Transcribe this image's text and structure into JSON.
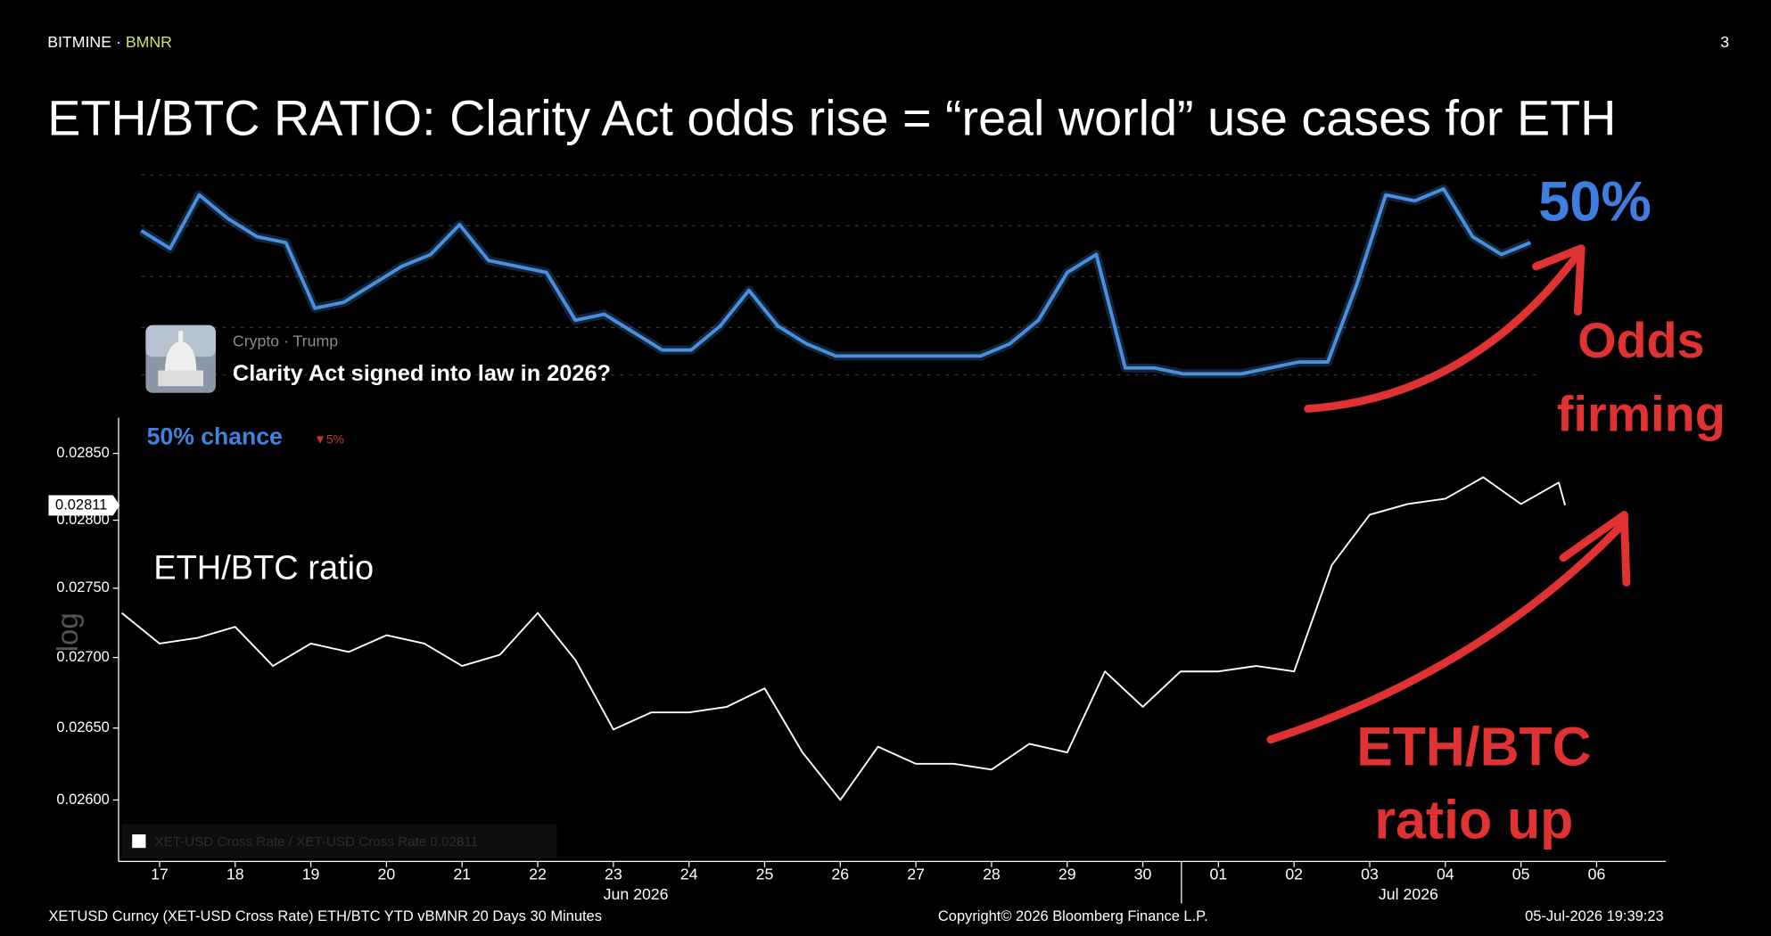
{
  "header": {
    "brand": "BITMINE ·",
    "ticker": "BMNR",
    "page": "3"
  },
  "title": "ETH/BTC RATIO: Clarity Act odds rise = “real world” use cases for ETH",
  "chart_data": [
    {
      "type": "line",
      "color": "#4a8fe0",
      "values": [
        52,
        49,
        58,
        54,
        51,
        50,
        39,
        40,
        43,
        46,
        48,
        53,
        47,
        46,
        45,
        37,
        38,
        35,
        32,
        32,
        36,
        42,
        36,
        33,
        31,
        31,
        31,
        31,
        31,
        31,
        33,
        37,
        45,
        48,
        29,
        29,
        28,
        28,
        28,
        29,
        30,
        30,
        43,
        58,
        57,
        59,
        51,
        48,
        50
      ],
      "ylim": [
        25,
        60
      ],
      "card": {
        "category": "Crypto · Trump",
        "question": "Clarity Act signed into law in 2026?",
        "chance": "50% chance",
        "change": "▼5%"
      },
      "annotation": "50%"
    },
    {
      "type": "line",
      "log_scale": true,
      "x": [
        "2026-06-16T12:00",
        "2026-06-17T00:00",
        "2026-06-17T12:00",
        "2026-06-18T00:00",
        "2026-06-18T12:00",
        "2026-06-19T00:00",
        "2026-06-19T12:00",
        "2026-06-20T00:00",
        "2026-06-20T12:00",
        "2026-06-21T00:00",
        "2026-06-21T12:00",
        "2026-06-22T00:00",
        "2026-06-22T12:00",
        "2026-06-23T00:00",
        "2026-06-23T12:00",
        "2026-06-24T00:00",
        "2026-06-24T12:00",
        "2026-06-25T00:00",
        "2026-06-25T12:00",
        "2026-06-26T00:00",
        "2026-06-26T12:00",
        "2026-06-27T00:00",
        "2026-06-27T12:00",
        "2026-06-28T00:00",
        "2026-06-28T12:00",
        "2026-06-29T00:00",
        "2026-06-29T12:00",
        "2026-06-30T00:00",
        "2026-06-30T12:00",
        "2026-07-01T00:00",
        "2026-07-01T12:00",
        "2026-07-02T00:00",
        "2026-07-02T12:00",
        "2026-07-03T00:00",
        "2026-07-03T12:00",
        "2026-07-04T00:00",
        "2026-07-04T12:00",
        "2026-07-05T00:00",
        "2026-07-05T12:00",
        "2026-07-05T14:00"
      ],
      "series": [
        {
          "name": "XET-USD Cross Rate / XET-USD Cross Rate 0.02811",
          "color": "#ffffff",
          "values": [
            0.02732,
            0.0271,
            0.02714,
            0.02722,
            0.02694,
            0.0271,
            0.02704,
            0.02716,
            0.0271,
            0.02694,
            0.02702,
            0.02732,
            0.02698,
            0.02649,
            0.02661,
            0.02661,
            0.02665,
            0.02678,
            0.02633,
            0.026,
            0.02637,
            0.02625,
            0.02625,
            0.02621,
            0.02639,
            0.02633,
            0.0269,
            0.02665,
            0.0269,
            0.0269,
            0.02694,
            0.0269,
            0.02767,
            0.02804,
            0.02812,
            0.02816,
            0.02832,
            0.02812,
            0.02828,
            0.02811
          ]
        }
      ],
      "xlim": [
        "2026-06-16T11:00",
        "2026-07-06T22:00"
      ],
      "ylim": [
        0.02558,
        0.02877
      ],
      "yticks": [
        {
          "value": 0.026,
          "label": "0.02600"
        },
        {
          "value": 0.0265,
          "label": "0.02650"
        },
        {
          "value": 0.027,
          "label": "0.02700"
        },
        {
          "value": 0.0275,
          "label": "0.02750"
        },
        {
          "value": 0.028,
          "label": "0.02800"
        },
        {
          "value": 0.0285,
          "label": "0.02850"
        }
      ],
      "xticks": [
        {
          "value": "2026-06-17T00:00",
          "label": "17"
        },
        {
          "value": "2026-06-18T00:00",
          "label": "18"
        },
        {
          "value": "2026-06-19T00:00",
          "label": "19"
        },
        {
          "value": "2026-06-20T00:00",
          "label": "20"
        },
        {
          "value": "2026-06-21T00:00",
          "label": "21"
        },
        {
          "value": "2026-06-22T00:00",
          "label": "22"
        },
        {
          "value": "2026-06-23T00:00",
          "label": "23"
        },
        {
          "value": "2026-06-24T00:00",
          "label": "24"
        },
        {
          "value": "2026-06-25T00:00",
          "label": "25"
        },
        {
          "value": "2026-06-26T00:00",
          "label": "26"
        },
        {
          "value": "2026-06-27T00:00",
          "label": "27"
        },
        {
          "value": "2026-06-28T00:00",
          "label": "28"
        },
        {
          "value": "2026-06-29T00:00",
          "label": "29"
        },
        {
          "value": "2026-06-30T00:00",
          "label": "30"
        },
        {
          "value": "2026-07-01T00:00",
          "label": "01"
        },
        {
          "value": "2026-07-02T00:00",
          "label": "02"
        },
        {
          "value": "2026-07-03T00:00",
          "label": "03"
        },
        {
          "value": "2026-07-04T00:00",
          "label": "04"
        },
        {
          "value": "2026-07-05T00:00",
          "label": "05"
        },
        {
          "value": "2026-07-06T00:00",
          "label": "06"
        }
      ],
      "month_labels": [
        "Jun 2026",
        "Jul 2026"
      ],
      "series_label": "ETH/BTC ratio",
      "axis_label": "log"
    }
  ],
  "annotations": {
    "odds": [
      "Odds",
      "firming"
    ],
    "ratio": [
      "ETH/BTC",
      "ratio up"
    ]
  },
  "footer": {
    "source": "XETUSD Curncy (XET-USD Cross Rate) ETH/BTC YTD vBMNR 20 Days 30 Minutes",
    "copyright": "Copyright© 2026 Bloomberg Finance L.P.",
    "timestamp": "05-Jul-2026 19:39:23"
  }
}
